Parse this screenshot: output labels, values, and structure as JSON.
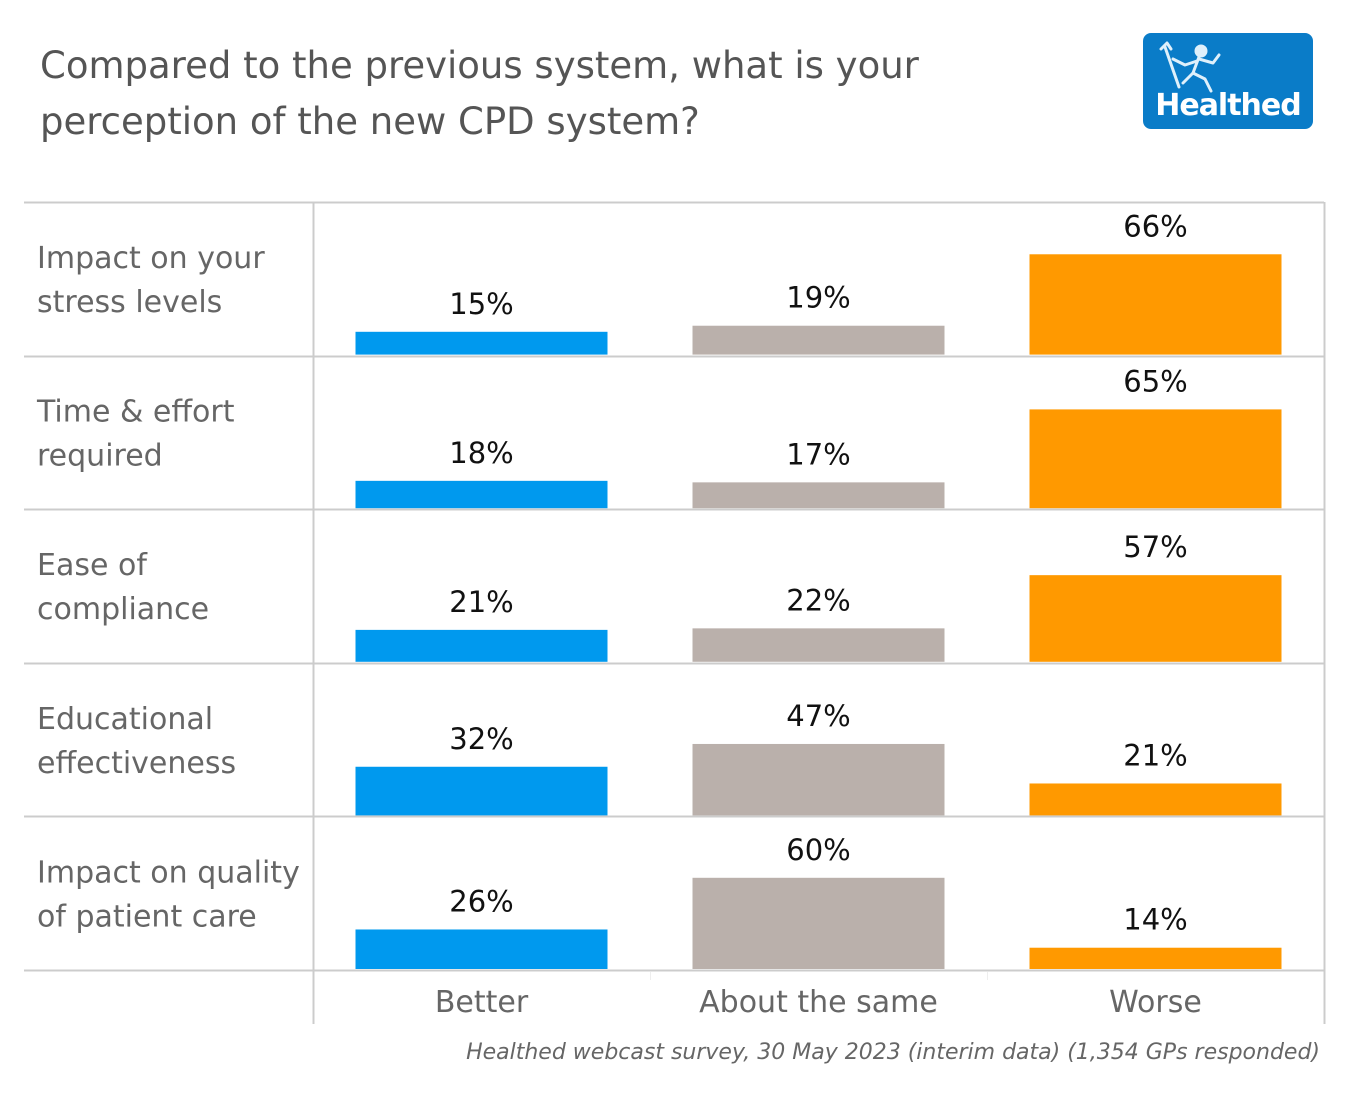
{
  "header": {
    "title_line1": "Compared to the previous system, what is your",
    "title_line2": "perception of the new CPD system?",
    "logo_text": "Healthed",
    "logo_icon": "running-hermes-figure-icon"
  },
  "colors": {
    "Better": "#0099ee",
    "About the same": "#bab0ab",
    "Worse": "#ff9900",
    "logo_bg": "#0a7cc8",
    "gridline": "#cccccc"
  },
  "chart_data": {
    "type": "bar",
    "title": "Compared to the previous system, what is your perception of the new CPD system?",
    "layout": "small-multiples rows",
    "categories": [
      "Better",
      "About the same",
      "Worse"
    ],
    "rows": [
      {
        "label_lines": [
          "Impact on your",
          "stress levels"
        ],
        "values": [
          15,
          19,
          66
        ]
      },
      {
        "label_lines": [
          "Time & effort",
          "required"
        ],
        "values": [
          18,
          17,
          65
        ]
      },
      {
        "label_lines": [
          "Ease of",
          "compliance"
        ],
        "values": [
          21,
          22,
          57
        ]
      },
      {
        "label_lines": [
          "Educational",
          "effectiveness"
        ],
        "values": [
          32,
          47,
          21
        ]
      },
      {
        "label_lines": [
          "Impact on quality",
          "of patient care"
        ],
        "values": [
          26,
          60,
          14
        ]
      }
    ],
    "value_format": "percent",
    "ylim": [
      0,
      100
    ],
    "xlabel": "",
    "ylabel": "",
    "grid": true,
    "legend": "none"
  },
  "footer": {
    "source": "Healthed webcast survey, 30 May 2023 (interim data) (1,354 GPs responded)"
  }
}
